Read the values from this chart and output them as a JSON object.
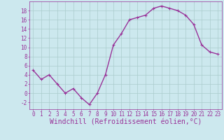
{
  "x": [
    0,
    1,
    2,
    3,
    4,
    5,
    6,
    7,
    8,
    9,
    10,
    11,
    12,
    13,
    14,
    15,
    16,
    17,
    18,
    19,
    20,
    21,
    22,
    23
  ],
  "y": [
    5,
    3,
    4,
    2,
    0,
    1,
    -1,
    -2.5,
    0,
    4,
    10.5,
    13,
    16,
    16.5,
    17,
    18.5,
    19,
    18.5,
    18,
    17,
    15,
    10.5,
    9,
    8.5
  ],
  "line_color": "#993399",
  "marker_color": "#993399",
  "bg_color": "#cce8ee",
  "grid_color": "#aacccc",
  "xlabel": "Windchill (Refroidissement éolien,°C)",
  "xlabel_color": "#993399",
  "ylim": [
    -3.5,
    20
  ],
  "yticks": [
    -2,
    0,
    2,
    4,
    6,
    8,
    10,
    12,
    14,
    16,
    18
  ],
  "xticks": [
    0,
    1,
    2,
    3,
    4,
    5,
    6,
    7,
    8,
    9,
    10,
    11,
    12,
    13,
    14,
    15,
    16,
    17,
    18,
    19,
    20,
    21,
    22,
    23
  ],
  "tick_color": "#993399",
  "tick_label_fontsize": 5.5,
  "xlabel_fontsize": 7.0,
  "line_width": 1.0,
  "marker_size": 2.5
}
